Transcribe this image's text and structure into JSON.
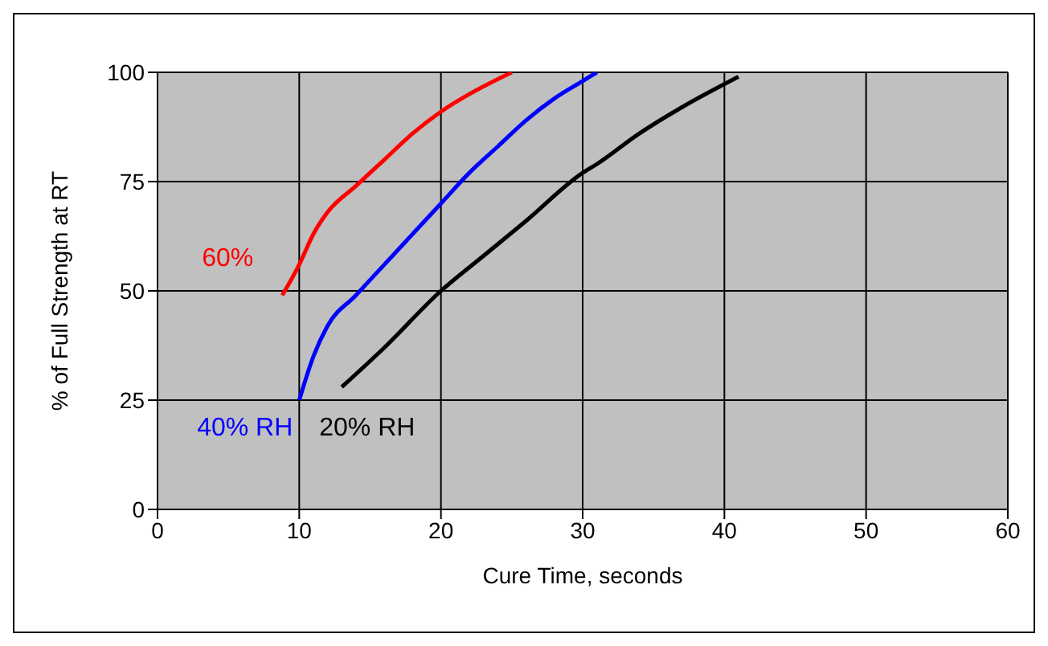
{
  "chart_data": {
    "type": "line",
    "xlabel": "Cure Time, seconds",
    "ylabel": "% of Full Strength at RT",
    "xlim": [
      0,
      60
    ],
    "xticks": [
      0,
      10,
      20,
      30,
      40,
      50,
      60
    ],
    "ylim": [
      0,
      100
    ],
    "yticks": [
      0,
      25,
      50,
      75,
      100
    ],
    "grid": true,
    "legend": false,
    "marker": "none",
    "line_style": "solid",
    "series": [
      {
        "name": "60%",
        "color": "#ff0000",
        "x": [
          8.8,
          10,
          11,
          12,
          14,
          16,
          18,
          20,
          22,
          25
        ],
        "values": [
          49,
          56,
          63,
          68,
          74,
          80,
          86,
          91,
          95,
          100
        ]
      },
      {
        "name": "40% RH",
        "color": "#0000ff",
        "x": [
          10,
          11,
          12,
          14,
          16,
          18,
          20,
          22,
          24,
          26,
          28,
          30,
          31
        ],
        "values": [
          25,
          35,
          42,
          49,
          56,
          63,
          70,
          77,
          83,
          89,
          94,
          98,
          100
        ]
      },
      {
        "name": "20% RH",
        "color": "#000000",
        "x": [
          13,
          16,
          20,
          23,
          26,
          30,
          31,
          34,
          37,
          41
        ],
        "values": [
          28,
          37,
          50,
          58,
          66,
          77,
          79,
          86,
          92,
          99
        ]
      }
    ]
  }
}
